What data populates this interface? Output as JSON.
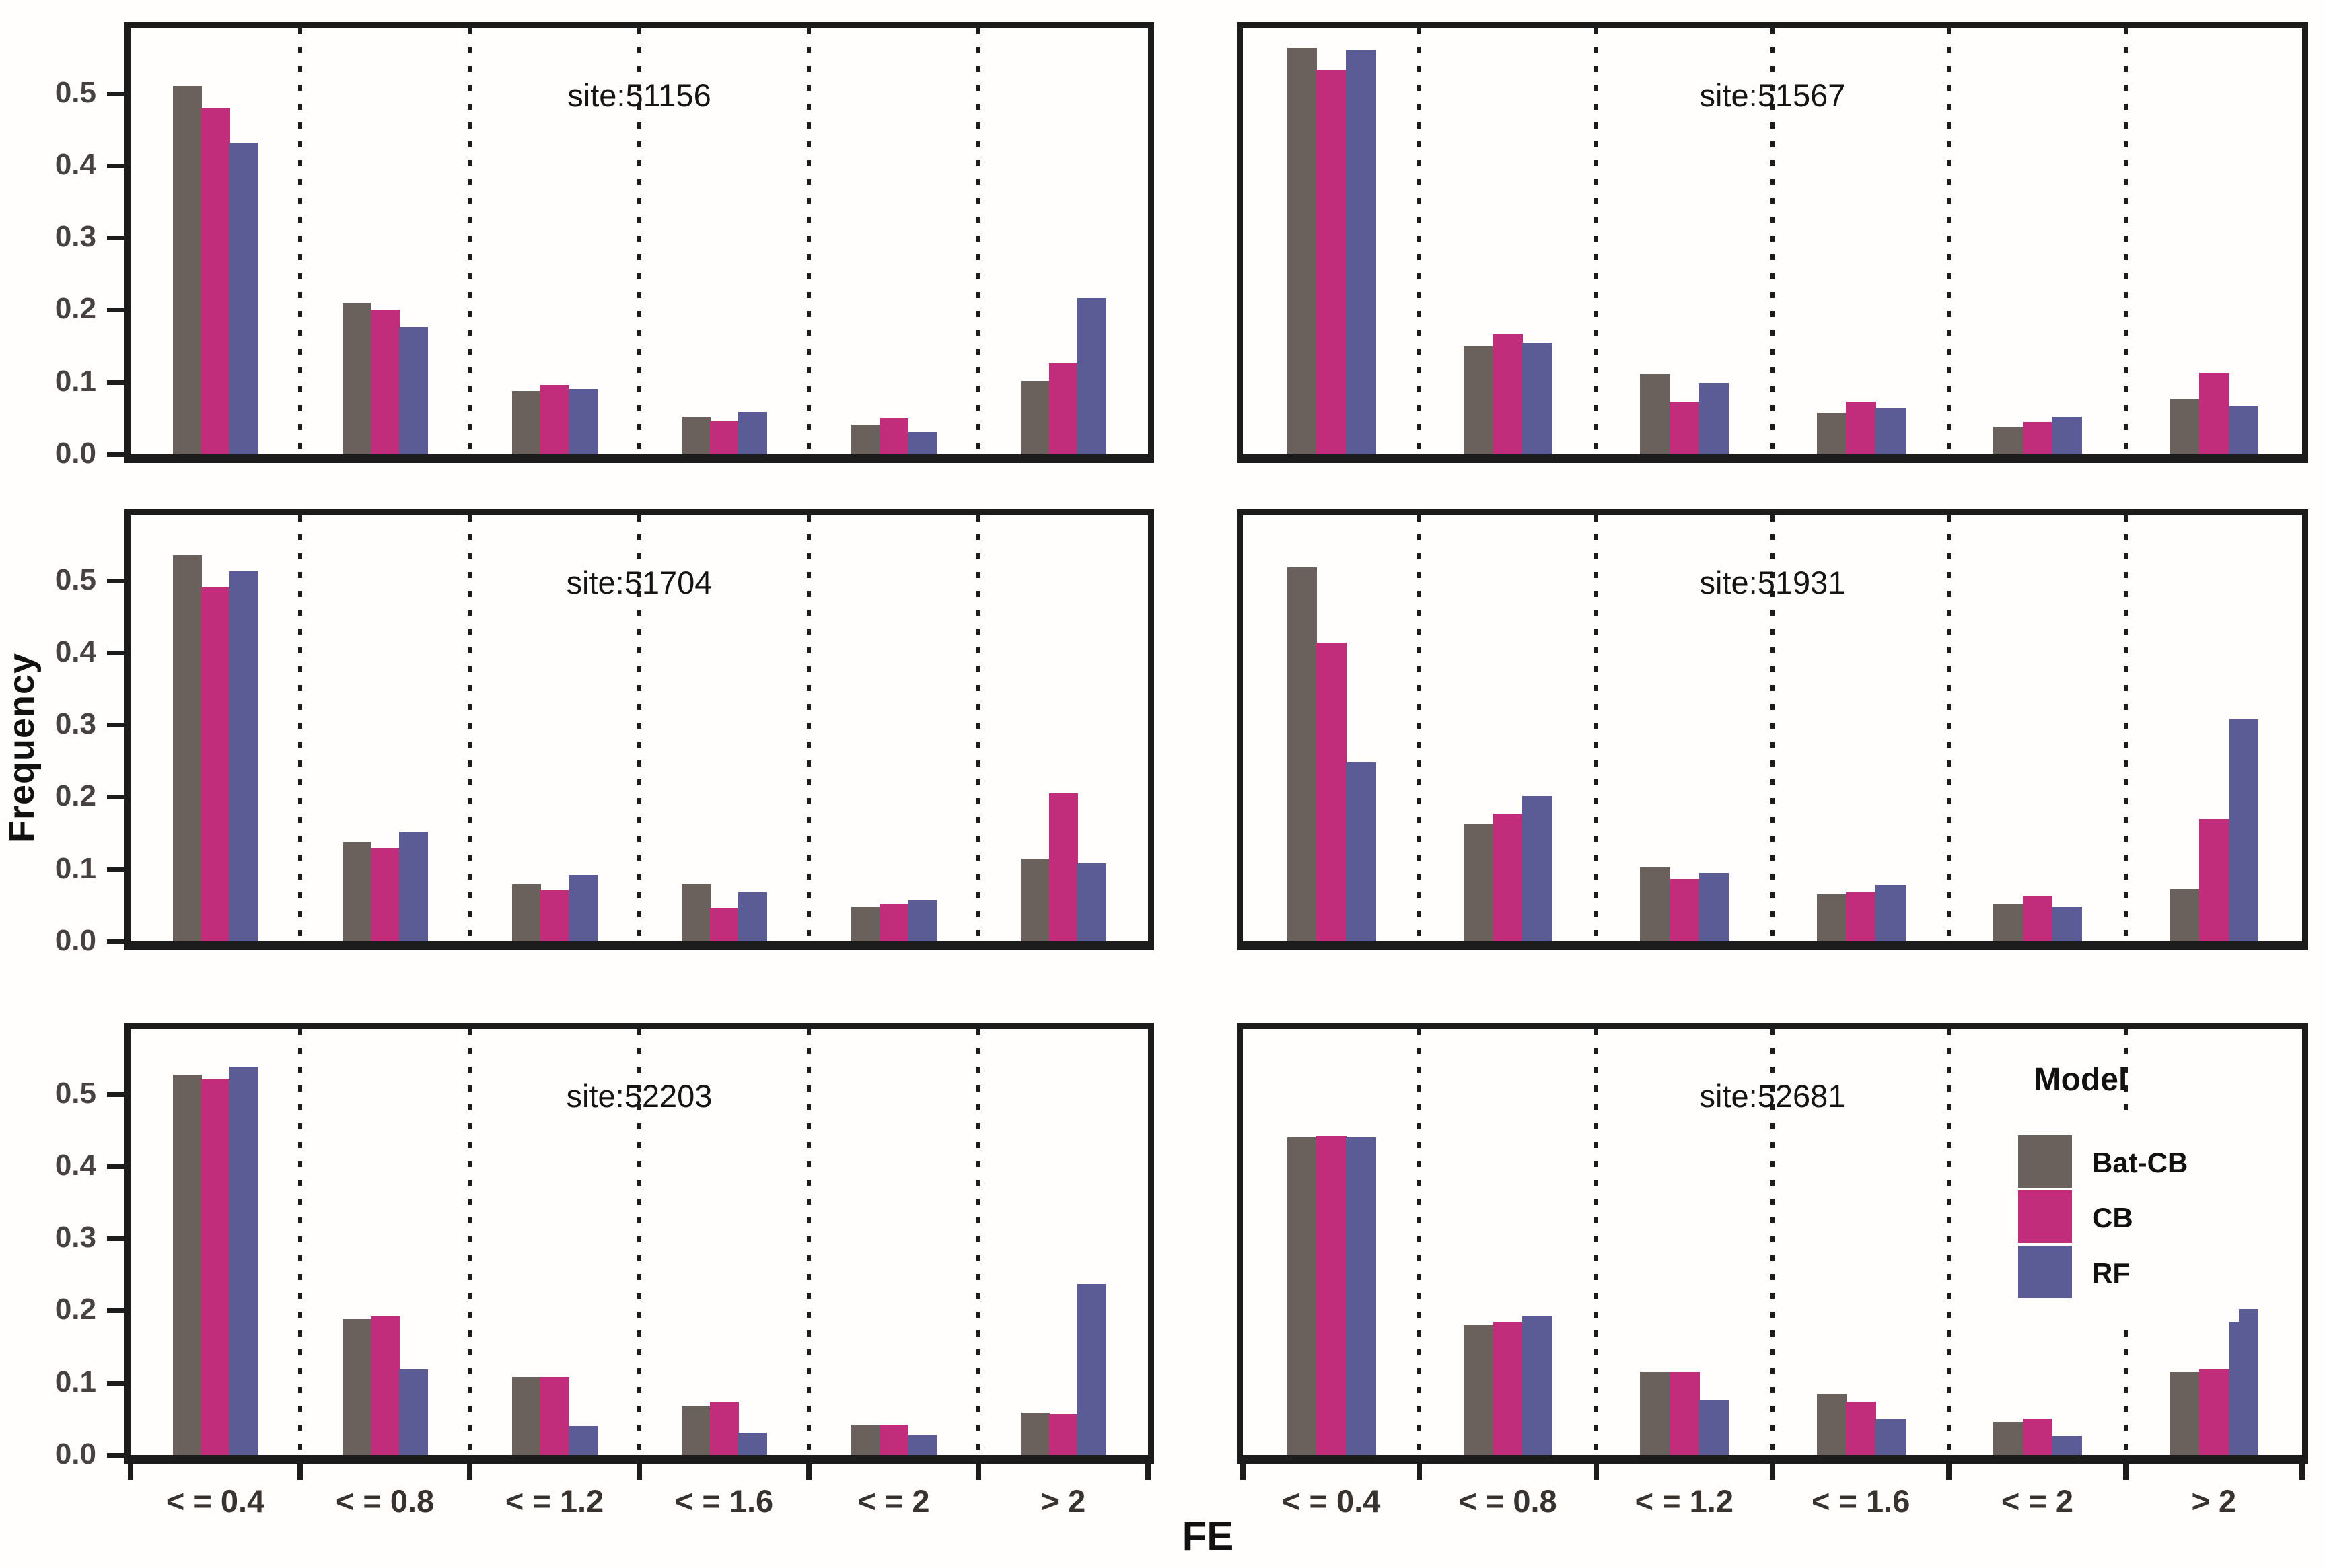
{
  "figure": {
    "y_axis_label": "Frequency",
    "x_axis_label": "FE",
    "y_ticks": [
      "0.0",
      "0.1",
      "0.2",
      "0.3",
      "0.4",
      "0.5"
    ],
    "ylim": [
      0,
      0.59
    ],
    "background": "#fffefc",
    "axis_color": "#1c1c1c",
    "grid": "vertical-dotted"
  },
  "legend": {
    "title": "Model",
    "position": "inside bottom-right panel, top-right",
    "entries": [
      {
        "label": "Bat-CB",
        "color": "#6a615c"
      },
      {
        "label": "CB",
        "color": "#c22d7b"
      },
      {
        "label": "RF",
        "color": "#5b5c96"
      }
    ]
  },
  "chart_data": [
    {
      "type": "bar",
      "title": "site:51156",
      "categories": [
        "< = 0.4",
        "< = 0.8",
        "< = 1.2",
        "< = 1.6",
        "< = 2",
        "> 2"
      ],
      "xlabel": "FE",
      "ylabel": "Frequency",
      "ylim": [
        0,
        0.59
      ],
      "series": [
        {
          "name": "Bat-CB",
          "values": [
            0.51,
            0.21,
            0.088,
            0.052,
            0.041,
            0.102
          ]
        },
        {
          "name": "CB",
          "values": [
            0.48,
            0.2,
            0.096,
            0.046,
            0.05,
            0.126
          ]
        },
        {
          "name": "RF",
          "values": [
            0.432,
            0.176,
            0.09,
            0.059,
            0.031,
            0.216
          ]
        }
      ]
    },
    {
      "type": "bar",
      "title": "site:51567",
      "categories": [
        "< = 0.4",
        "< = 0.8",
        "< = 1.2",
        "< = 1.6",
        "< = 2",
        "> 2"
      ],
      "xlabel": "FE",
      "ylabel": "Frequency",
      "ylim": [
        0,
        0.59
      ],
      "series": [
        {
          "name": "Bat-CB",
          "values": [
            0.563,
            0.15,
            0.111,
            0.058,
            0.037,
            0.076
          ]
        },
        {
          "name": "CB",
          "values": [
            0.532,
            0.167,
            0.073,
            0.073,
            0.045,
            0.113
          ]
        },
        {
          "name": "RF",
          "values": [
            0.56,
            0.155,
            0.099,
            0.063,
            0.052,
            0.066
          ]
        }
      ]
    },
    {
      "type": "bar",
      "title": "site:51704",
      "categories": [
        "< = 0.4",
        "< = 0.8",
        "< = 1.2",
        "< = 1.6",
        "< = 2",
        "> 2"
      ],
      "xlabel": "FE",
      "ylabel": "Frequency",
      "ylim": [
        0,
        0.59
      ],
      "series": [
        {
          "name": "Bat-CB",
          "values": [
            0.535,
            0.138,
            0.079,
            0.079,
            0.048,
            0.115
          ]
        },
        {
          "name": "CB",
          "values": [
            0.49,
            0.13,
            0.071,
            0.047,
            0.052,
            0.205
          ]
        },
        {
          "name": "RF",
          "values": [
            0.513,
            0.152,
            0.092,
            0.068,
            0.057,
            0.108
          ]
        }
      ]
    },
    {
      "type": "bar",
      "title": "site:51931",
      "categories": [
        "< = 0.4",
        "< = 0.8",
        "< = 1.2",
        "< = 1.6",
        "< = 2",
        "> 2"
      ],
      "xlabel": "FE",
      "ylabel": "Frequency",
      "ylim": [
        0,
        0.59
      ],
      "series": [
        {
          "name": "Bat-CB",
          "values": [
            0.518,
            0.163,
            0.103,
            0.065,
            0.051,
            0.073
          ]
        },
        {
          "name": "CB",
          "values": [
            0.414,
            0.177,
            0.087,
            0.068,
            0.062,
            0.17
          ]
        },
        {
          "name": "RF",
          "values": [
            0.248,
            0.201,
            0.095,
            0.078,
            0.048,
            0.308
          ]
        }
      ]
    },
    {
      "type": "bar",
      "title": "site:52203",
      "categories": [
        "< = 0.4",
        "< = 0.8",
        "< = 1.2",
        "< = 1.6",
        "< = 2",
        "> 2"
      ],
      "xlabel": "FE",
      "ylabel": "Frequency",
      "ylim": [
        0,
        0.59
      ],
      "series": [
        {
          "name": "Bat-CB",
          "values": [
            0.527,
            0.188,
            0.108,
            0.067,
            0.042,
            0.059
          ]
        },
        {
          "name": "CB",
          "values": [
            0.52,
            0.192,
            0.108,
            0.073,
            0.042,
            0.057
          ]
        },
        {
          "name": "RF",
          "values": [
            0.538,
            0.118,
            0.04,
            0.031,
            0.027,
            0.237
          ]
        }
      ]
    },
    {
      "type": "bar",
      "title": "site:52681",
      "categories": [
        "< = 0.4",
        "< = 0.8",
        "< = 1.2",
        "< = 1.6",
        "< = 2",
        "> 2"
      ],
      "xlabel": "FE",
      "ylabel": "Frequency",
      "ylim": [
        0,
        0.59
      ],
      "series": [
        {
          "name": "Bat-CB",
          "values": [
            0.44,
            0.18,
            0.115,
            0.084,
            0.046,
            0.115
          ]
        },
        {
          "name": "CB",
          "values": [
            0.442,
            0.185,
            0.115,
            0.074,
            0.05,
            0.118
          ]
        },
        {
          "name": "RF",
          "values": [
            0.44,
            0.192,
            0.076,
            0.049,
            0.026,
            0.202
          ]
        }
      ]
    }
  ]
}
